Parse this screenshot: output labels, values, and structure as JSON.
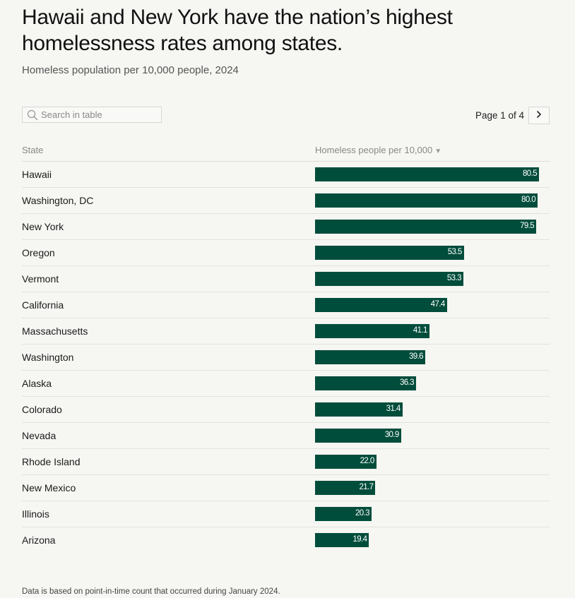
{
  "header": {
    "title": "Hawaii and New York have the nation’s highest homelessness rates among states.",
    "subtitle": "Homeless population per 10,000 people, 2024"
  },
  "controls": {
    "search_placeholder": "Search in table",
    "search_value": "",
    "page_label": "Page 1 of 4",
    "next_icon": "chevron-right-icon",
    "search_icon": "search-icon"
  },
  "table": {
    "col_state": "State",
    "col_value": "Homeless people per 10,000",
    "sort_indicator": "▼"
  },
  "chart_data": {
    "type": "bar",
    "orientation": "horizontal",
    "title": "Hawaii and New York have the nation’s highest homelessness rates among states.",
    "subtitle": "Homeless population per 10,000 people, 2024",
    "categories": [
      "Hawaii",
      "Washington, DC",
      "New York",
      "Oregon",
      "Vermont",
      "California",
      "Massachusetts",
      "Washington",
      "Alaska",
      "Colorado",
      "Nevada",
      "Rhode Island",
      "New Mexico",
      "Illinois",
      "Arizona"
    ],
    "values": [
      80.5,
      80.0,
      79.5,
      53.5,
      53.3,
      47.4,
      41.1,
      39.6,
      36.3,
      31.4,
      30.9,
      22.0,
      21.7,
      20.3,
      19.4
    ],
    "value_labels": [
      "80.5",
      "80.0",
      "79.5",
      "53.5",
      "53.3",
      "47.4",
      "41.1",
      "39.6",
      "36.3",
      "31.4",
      "30.9",
      "22.0",
      "21.7",
      "20.3",
      "19.4"
    ],
    "xlim": [
      0,
      80.5
    ],
    "bar_color": "#004d3b",
    "label_color": "#ffffff",
    "grid": false
  },
  "footnote": "Data is based on point-in-time count that occurred during January 2024."
}
